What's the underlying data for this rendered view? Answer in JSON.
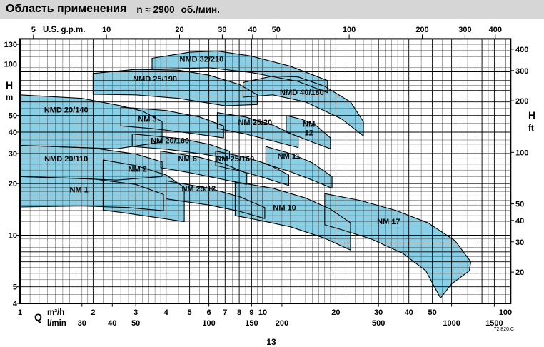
{
  "header": {
    "title": "Область применения",
    "speed": "n ≈ 2900",
    "speed_unit": "об./мин."
  },
  "footer": {
    "doc_ref": "72.820.C",
    "page_number": "13"
  },
  "chart_data": {
    "type": "area",
    "title": "Область применения n ≈ 2900 об./мин.",
    "scales": {
      "x": "log",
      "y": "log"
    },
    "x_range_m3h": [
      1,
      105
    ],
    "y_range_m": [
      4,
      138
    ],
    "grid": true,
    "axes": {
      "top": {
        "unit_label": "U.S. g.p.m.",
        "ticks": [
          5,
          10,
          20,
          30,
          40,
          50,
          100,
          200,
          300,
          400
        ]
      },
      "bottom_m3h": {
        "label": "Q",
        "unit_label": "m³/h",
        "ticks": [
          1,
          2,
          3,
          4,
          5,
          6,
          7,
          8,
          9,
          10,
          20,
          30,
          40,
          50,
          100
        ]
      },
      "bottom_lmin": {
        "unit_label": "l/min",
        "ticks": [
          30,
          40,
          50,
          100,
          150,
          200,
          500,
          1000,
          1500
        ]
      },
      "left": {
        "label": "H",
        "unit_label": "m",
        "ticks": [
          130,
          100,
          50,
          40,
          30,
          20,
          10,
          5,
          4
        ]
      },
      "right": {
        "label": "H",
        "unit_label": "ft",
        "ticks": [
          400,
          300,
          200,
          100,
          50,
          40,
          30,
          20
        ]
      }
    },
    "colors": {
      "region_fill": "#89CFE5",
      "region_stroke": "#000000",
      "grid_minor": "#4d4d4d",
      "grid_major": "#000000",
      "header_bg": "#d6d6d6"
    },
    "regions": [
      {
        "name": "NMD 32/210",
        "label_lines": [
          "NMD 32/210"
        ],
        "label_pos": [
          5.6,
          103
        ],
        "points": [
          [
            3.5,
            108
          ],
          [
            5,
            117
          ],
          [
            6.5,
            119
          ],
          [
            9,
            111
          ],
          [
            13,
            97
          ],
          [
            18.5,
            80
          ],
          [
            18.5,
            68
          ],
          [
            14,
            79
          ],
          [
            9,
            89
          ],
          [
            6,
            95
          ],
          [
            3.5,
            93
          ]
        ]
      },
      {
        "name": "NMD 25/190",
        "label_lines": [
          "NMD 25/190"
        ],
        "label_pos": [
          3.6,
          79
        ],
        "points": [
          [
            2,
            88
          ],
          [
            3,
            93
          ],
          [
            4.5,
            92
          ],
          [
            6,
            86
          ],
          [
            8,
            76
          ],
          [
            9.5,
            66
          ],
          [
            9.5,
            58
          ],
          [
            7,
            57
          ],
          [
            4.5,
            63
          ],
          [
            3,
            66
          ],
          [
            2,
            66.5
          ]
        ]
      },
      {
        "name": "NMD 40/180",
        "label_lines": [
          "NMD 40/180"
        ],
        "label_pos": [
          14.5,
          66
        ],
        "points": [
          [
            8.3,
            78
          ],
          [
            11,
            85
          ],
          [
            14,
            84
          ],
          [
            18,
            74
          ],
          [
            23,
            60
          ],
          [
            26,
            46
          ],
          [
            26,
            38
          ],
          [
            21,
            48
          ],
          [
            15,
            60
          ],
          [
            11,
            66
          ],
          [
            8.3,
            64
          ]
        ]
      },
      {
        "name": "NMD 20/140",
        "label_lines": [
          "NMD 20/140"
        ],
        "label_pos": [
          1.55,
          52
        ],
        "points": [
          [
            1,
            66
          ],
          [
            1.8,
            63
          ],
          [
            2.6,
            57
          ],
          [
            3.2,
            53
          ],
          [
            3.85,
            46
          ],
          [
            3.85,
            35
          ],
          [
            2.5,
            32
          ],
          [
            1.5,
            32.8
          ],
          [
            1,
            33.5
          ]
        ]
      },
      {
        "name": "NM 3",
        "label_lines": [
          "NM 3"
        ],
        "label_pos": [
          3.35,
          46
        ],
        "points": [
          [
            2.6,
            56
          ],
          [
            4,
            53.5
          ],
          [
            5.5,
            49
          ],
          [
            6.9,
            43.5
          ],
          [
            6.9,
            37
          ],
          [
            5,
            39.5
          ],
          [
            3.5,
            42
          ],
          [
            2.6,
            43.5
          ]
        ]
      },
      {
        "name": "NM 25/20",
        "label_lines": [
          "NM 25/20"
        ],
        "label_pos": [
          9.3,
          44
        ],
        "points": [
          [
            6.5,
            52
          ],
          [
            8.5,
            49
          ],
          [
            11,
            44
          ],
          [
            14,
            37.5
          ],
          [
            14,
            32.5
          ],
          [
            11,
            35.5
          ],
          [
            8.5,
            39
          ],
          [
            6.5,
            42
          ]
        ]
      },
      {
        "name": "NM 12",
        "label_lines": [
          "NM",
          "12"
        ],
        "label_pos": [
          15.5,
          43
        ],
        "points": [
          [
            12.5,
            50
          ],
          [
            14.5,
            47.5
          ],
          [
            16.5,
            44
          ],
          [
            19,
            37
          ],
          [
            19,
            32
          ],
          [
            16,
            35
          ],
          [
            13.5,
            38.5
          ],
          [
            12.5,
            40
          ]
        ]
      },
      {
        "name": "NM 20/160",
        "label_lines": [
          "NM 20/160"
        ],
        "label_pos": [
          4.15,
          34.5
        ],
        "points": [
          [
            2.9,
            39
          ],
          [
            4.5,
            36.8
          ],
          [
            6,
            34
          ],
          [
            7.3,
            31
          ],
          [
            7.3,
            28
          ],
          [
            5.5,
            30
          ],
          [
            4,
            31.8
          ],
          [
            2.9,
            33
          ]
        ]
      },
      {
        "name": "NMD 20/110",
        "label_lines": [
          "NMD 20/110"
        ],
        "label_pos": [
          1.55,
          27
        ],
        "points": [
          [
            1,
            33.5
          ],
          [
            2,
            32.3
          ],
          [
            3,
            29.8
          ],
          [
            3.85,
            26.8
          ],
          [
            3.85,
            22
          ],
          [
            2.5,
            21
          ],
          [
            1.5,
            21.6
          ],
          [
            1,
            22
          ]
        ]
      },
      {
        "name": "NM 6",
        "label_lines": [
          "NM 6"
        ],
        "label_pos": [
          4.9,
          27
        ],
        "points": [
          [
            3.8,
            31
          ],
          [
            5.5,
            28.5
          ],
          [
            7,
            26
          ],
          [
            8.6,
            23
          ],
          [
            8.6,
            19.8
          ],
          [
            6.5,
            21.5
          ],
          [
            5,
            23.2
          ],
          [
            3.8,
            24.8
          ]
        ]
      },
      {
        "name": "NM 25/160",
        "label_lines": [
          "NM 25/160"
        ],
        "label_pos": [
          7.7,
          27
        ],
        "points": [
          [
            6.4,
            31
          ],
          [
            8.5,
            28.5
          ],
          [
            10.5,
            26
          ],
          [
            12.8,
            22.5
          ],
          [
            12.8,
            19.5
          ],
          [
            10,
            21.8
          ],
          [
            8,
            23.8
          ],
          [
            6.4,
            25.5
          ]
        ]
      },
      {
        "name": "NM 11",
        "label_lines": [
          "NM 11"
        ],
        "label_pos": [
          12.8,
          28
        ],
        "points": [
          [
            10.3,
            33
          ],
          [
            13,
            30
          ],
          [
            16,
            26.5
          ],
          [
            19.3,
            22
          ],
          [
            19.3,
            18.8
          ],
          [
            16,
            21
          ],
          [
            13,
            23.5
          ],
          [
            10.3,
            26
          ]
        ]
      },
      {
        "name": "NM 2",
        "label_lines": [
          "NM 2"
        ],
        "label_pos": [
          3.05,
          23.5
        ],
        "points": [
          [
            2.2,
            27.5
          ],
          [
            3,
            25.5
          ],
          [
            4,
            22.5
          ],
          [
            4.75,
            19
          ],
          [
            4.75,
            12
          ],
          [
            3.5,
            12.8
          ],
          [
            2.6,
            13.6
          ],
          [
            2.2,
            14
          ]
        ]
      },
      {
        "name": "NM 25/12",
        "label_lines": [
          "NM 25/12"
        ],
        "label_pos": [
          5.45,
          18
        ],
        "points": [
          [
            4,
            20.8
          ],
          [
            6,
            18.8
          ],
          [
            8,
            16.8
          ],
          [
            10.2,
            14.5
          ],
          [
            10.2,
            12.5
          ],
          [
            8,
            13.8
          ],
          [
            6,
            15
          ],
          [
            4,
            16.3
          ]
        ]
      },
      {
        "name": "NM 1",
        "label_lines": [
          "NM 1"
        ],
        "label_pos": [
          1.75,
          17.8
        ],
        "points": [
          [
            1,
            22
          ],
          [
            2,
            21.3
          ],
          [
            3,
            19.8
          ],
          [
            3.9,
            17.3
          ],
          [
            3.9,
            13.9
          ],
          [
            2.8,
            14.5
          ],
          [
            1.8,
            14.8
          ],
          [
            1,
            14.6
          ]
        ]
      },
      {
        "name": "NM 10",
        "label_lines": [
          "NM 10"
        ],
        "label_pos": [
          12.3,
          14
        ],
        "points": [
          [
            7.7,
            20.5
          ],
          [
            11,
            18.8
          ],
          [
            15,
            16.5
          ],
          [
            19,
            14.2
          ],
          [
            23,
            11.8
          ],
          [
            23,
            8.2
          ],
          [
            18,
            9.6
          ],
          [
            13,
            11.2
          ],
          [
            9.5,
            12.3
          ],
          [
            7.7,
            13
          ]
        ]
      },
      {
        "name": "NM 17",
        "label_lines": [
          "NM 17"
        ],
        "label_pos": [
          33,
          11.6
        ],
        "points": [
          [
            18,
            17.5
          ],
          [
            25,
            16
          ],
          [
            35,
            14
          ],
          [
            48,
            11.8
          ],
          [
            62,
            9.3
          ],
          [
            72,
            7
          ],
          [
            71,
            6.2
          ],
          [
            60,
            5.2
          ],
          [
            54,
            4.3
          ],
          [
            47,
            6.2
          ],
          [
            38,
            7.8
          ],
          [
            28,
            9.5
          ],
          [
            21,
            10.8
          ],
          [
            18,
            11.5
          ]
        ]
      }
    ]
  }
}
